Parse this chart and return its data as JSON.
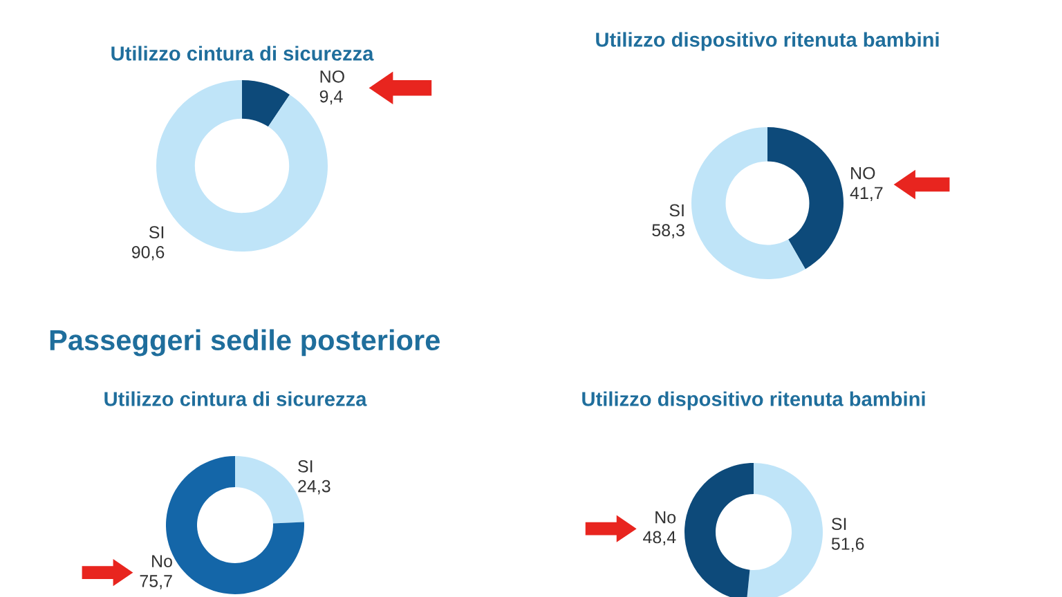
{
  "chart_data": [
    {
      "type": "donut",
      "title": "Utilizzo cintura di sicurezza",
      "categories": [
        "NO",
        "SI"
      ],
      "values": [
        9.4,
        90.6
      ],
      "value_labels": [
        "9,4",
        "90,6"
      ],
      "colors": [
        "#0d4a7a",
        "#bfe4f8"
      ]
    },
    {
      "type": "donut",
      "title": "Utilizzo dispositivo ritenuta bambini",
      "categories": [
        "NO",
        "SI"
      ],
      "values": [
        41.7,
        58.3
      ],
      "value_labels": [
        "41,7",
        "58,3"
      ],
      "colors": [
        "#0d4a7a",
        "#bfe4f8"
      ]
    },
    {
      "type": "donut",
      "title": "Utilizzo cintura di sicurezza",
      "categories": [
        "SI",
        "No"
      ],
      "values": [
        24.3,
        75.7
      ],
      "value_labels": [
        "24,3",
        "75,7"
      ],
      "colors": [
        "#bfe4f8",
        "#1466a8"
      ],
      "annotations": [
        "Passeggeri sedile posteriore"
      ]
    },
    {
      "type": "donut",
      "title": "Utilizzo dispositivo ritenuta bambini",
      "categories": [
        "SI",
        "No"
      ],
      "values": [
        51.6,
        48.4
      ],
      "value_labels": [
        "51,6",
        "48,4"
      ],
      "colors": [
        "#bfe4f8",
        "#0d4a7a"
      ]
    }
  ]
}
